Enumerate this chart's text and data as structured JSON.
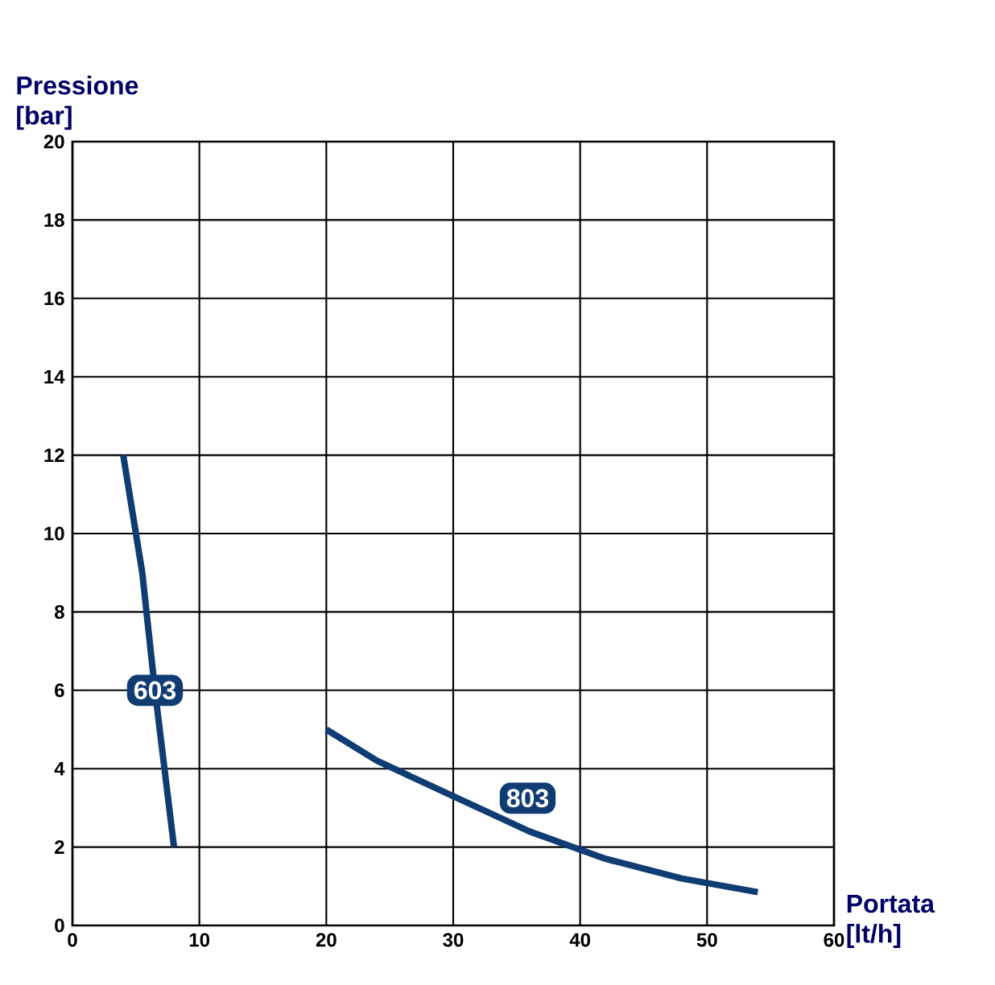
{
  "chart_data": {
    "type": "line",
    "xlabel": "Portata [lt/h]",
    "ylabel": "Pressione [bar]",
    "xlim": [
      0,
      60
    ],
    "ylim": [
      0,
      20
    ],
    "xticks": [
      0,
      10,
      20,
      30,
      40,
      50,
      60
    ],
    "yticks": [
      0,
      2,
      4,
      6,
      8,
      10,
      12,
      14,
      16,
      18,
      20
    ],
    "grid": true,
    "marker": "none",
    "line_style": "solid",
    "series": [
      {
        "name": "603",
        "color": "#0f3d73",
        "x": [
          4,
          5.5,
          6.5,
          8
        ],
        "values": [
          12,
          9,
          6,
          2
        ]
      },
      {
        "name": "803",
        "color": "#0f3d73",
        "x": [
          20,
          24,
          30,
          36,
          42,
          48,
          54
        ],
        "values": [
          5,
          4.2,
          3.3,
          2.4,
          1.7,
          1.2,
          0.85
        ]
      }
    ]
  }
}
